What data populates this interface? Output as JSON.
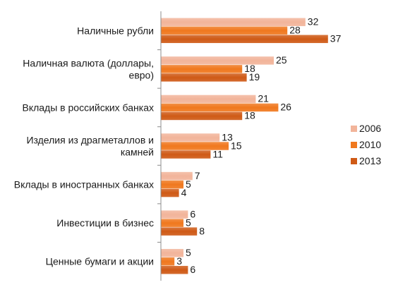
{
  "chart_data": {
    "type": "bar",
    "orientation": "horizontal",
    "categories": [
      [
        "Наличные рубли"
      ],
      [
        "Наличная валюта (доллары,",
        "евро)"
      ],
      [
        "Вклады в российских банках"
      ],
      [
        "Изделия из драгметаллов и",
        "камней"
      ],
      [
        "Вклады в иностранных банках"
      ],
      [
        "Инвестиции в бизнес"
      ],
      [
        "Ценные бумаги  и акции"
      ]
    ],
    "series": [
      {
        "name": "2006",
        "color": "#F2B49A",
        "values": [
          32,
          25,
          21,
          13,
          7,
          6,
          5
        ]
      },
      {
        "name": "2010",
        "color": "#F0781E",
        "values": [
          28,
          18,
          26,
          15,
          5,
          5,
          3
        ]
      },
      {
        "name": "2013",
        "color": "#CF5A16",
        "values": [
          37,
          19,
          18,
          11,
          4,
          8,
          6
        ]
      }
    ],
    "xlim": [
      0,
      40
    ],
    "grid": false,
    "legend": "right"
  }
}
